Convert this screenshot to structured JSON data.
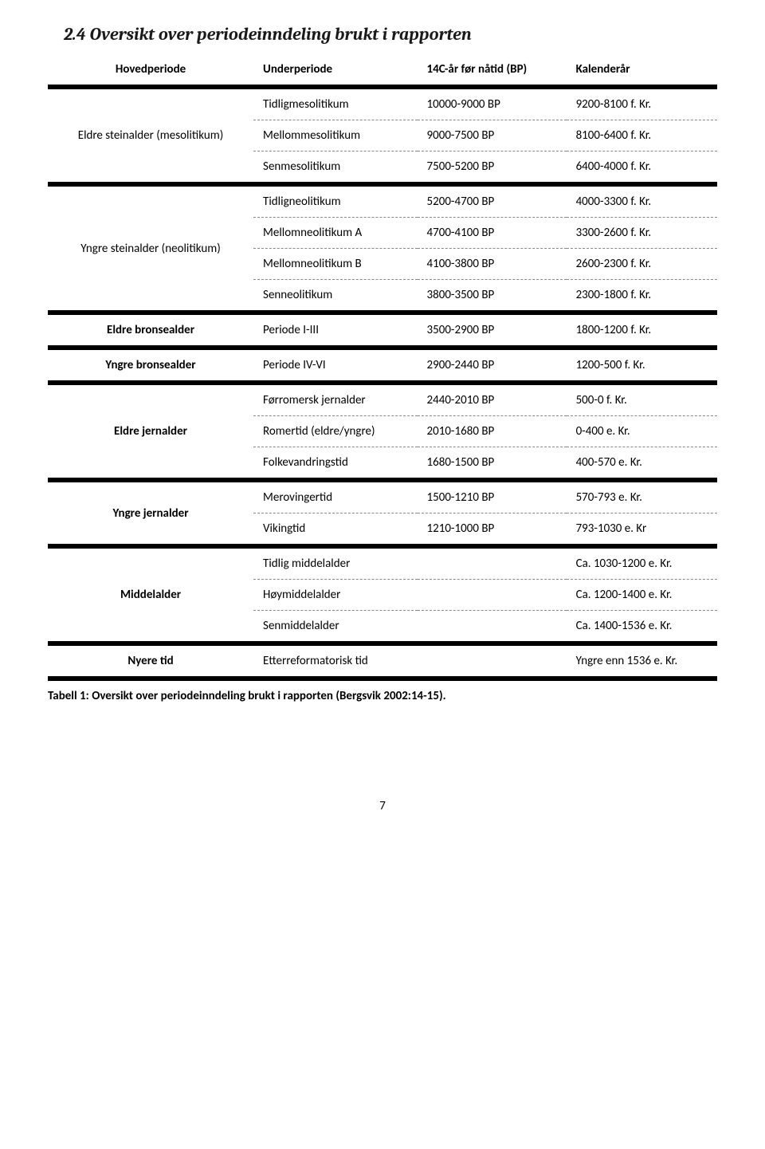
{
  "heading": "2.4  Oversikt over periodeinndeling brukt i rapporten",
  "columns": {
    "hovedperiode": "Hovedperiode",
    "underperiode": "Underperiode",
    "bp": "14C-år før nåtid (BP)",
    "kalender": "Kalenderår"
  },
  "groups": [
    {
      "main": "Eldre steinalder (mesolitikum)",
      "main_bold": false,
      "rows": [
        {
          "sub": "Tidligmesolitikum",
          "bp": "10000-9000 BP",
          "cal": "9200-8100 f. Kr."
        },
        {
          "sub": "Mellommesolitikum",
          "bp": "9000-7500 BP",
          "cal": "8100-6400 f. Kr."
        },
        {
          "sub": "Senmesolitikum",
          "bp": "7500-5200 BP",
          "cal": "6400-4000 f. Kr."
        }
      ]
    },
    {
      "main": "Yngre steinalder (neolitikum)",
      "main_bold": false,
      "rows": [
        {
          "sub": "Tidligneolitikum",
          "bp": "5200-4700 BP",
          "cal": "4000-3300 f. Kr."
        },
        {
          "sub": "Mellomneolitikum A",
          "bp": "4700-4100 BP",
          "cal": "3300-2600 f. Kr."
        },
        {
          "sub": "Mellomneolitikum B",
          "bp": "4100-3800 BP",
          "cal": "2600-2300 f. Kr."
        },
        {
          "sub": "Senneolitikum",
          "bp": "3800-3500 BP",
          "cal": "2300-1800 f. Kr."
        }
      ]
    },
    {
      "main": "Eldre bronsealder",
      "main_bold": true,
      "rows": [
        {
          "sub": "Periode I-III",
          "bp": "3500-2900 BP",
          "cal": "1800-1200 f. Kr."
        }
      ]
    },
    {
      "main": "Yngre bronsealder",
      "main_bold": true,
      "rows": [
        {
          "sub": "Periode IV-VI",
          "bp": "2900-2440 BP",
          "cal": "1200-500 f. Kr."
        }
      ]
    },
    {
      "main": "Eldre jernalder",
      "main_bold": true,
      "rows": [
        {
          "sub": "Førromersk jernalder",
          "bp": "2440-2010 BP",
          "cal": "500-0 f. Kr."
        },
        {
          "sub": "Romertid (eldre/yngre)",
          "bp": "2010-1680 BP",
          "cal": "0-400 e. Kr."
        },
        {
          "sub": "Folkevandringstid",
          "bp": "1680-1500 BP",
          "cal": "400-570 e. Kr."
        }
      ]
    },
    {
      "main": "Yngre jernalder",
      "main_bold": true,
      "rows": [
        {
          "sub": "Merovingertid",
          "bp": "1500-1210 BP",
          "cal": "570-793 e. Kr."
        },
        {
          "sub": "Vikingtid",
          "bp": "1210-1000 BP",
          "cal": "793-1030 e. Kr"
        }
      ]
    },
    {
      "main": "Middelalder",
      "main_bold": true,
      "rows": [
        {
          "sub": "Tidlig middelalder",
          "bp": "",
          "cal": "Ca. 1030-1200 e. Kr."
        },
        {
          "sub": "Høymiddelalder",
          "bp": "",
          "cal": "Ca. 1200-1400 e. Kr."
        },
        {
          "sub": "Senmiddelalder",
          "bp": "",
          "cal": "Ca. 1400-1536 e. Kr."
        }
      ]
    },
    {
      "main": "Nyere tid",
      "main_bold": true,
      "rows": [
        {
          "sub": "Etterreformatorisk tid",
          "bp": "",
          "cal": "Yngre enn 1536 e. Kr."
        }
      ]
    }
  ],
  "caption": "Tabell 1: Oversikt over periodeinndeling brukt i rapporten (Bergsvik 2002:14-15).",
  "page_number": "7"
}
